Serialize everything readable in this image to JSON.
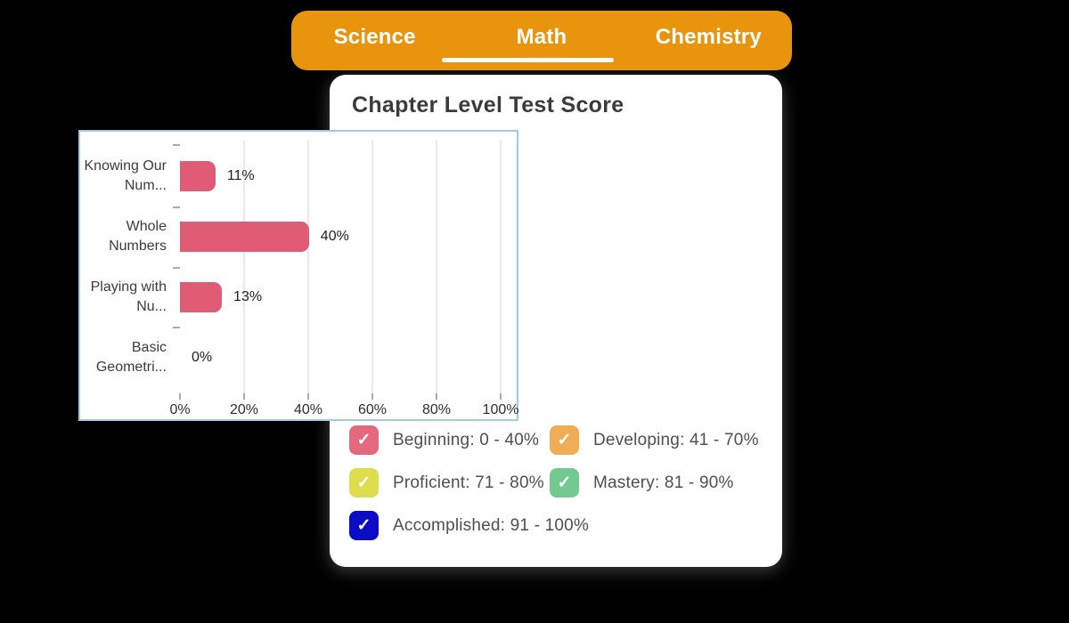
{
  "tab_bar": {
    "background_color": "#E8940D",
    "items": [
      {
        "label": "Science",
        "active": false
      },
      {
        "label": "Math",
        "active": true
      },
      {
        "label": "Chemistry",
        "active": false
      }
    ]
  },
  "card": {
    "title": "Chapter Level Test Score"
  },
  "chart_data": {
    "type": "bar",
    "orientation": "horizontal",
    "categories": [
      "Knowing Our Num...",
      "Whole Numbers",
      "Playing with Nu...",
      "Basic Geometri..."
    ],
    "values": [
      11,
      40,
      13,
      0
    ],
    "value_labels": [
      "11%",
      "40%",
      "13%",
      "0%"
    ],
    "x_ticks": [
      "0%",
      "20%",
      "40%",
      "60%",
      "80%",
      "100%"
    ],
    "xlim": [
      0,
      100
    ],
    "grid": true,
    "bar_color": "#E05C76",
    "legend_position": "below"
  },
  "legend": {
    "checkmark": "✓",
    "items": [
      {
        "label": "Beginning: 0 - 40%",
        "color": "#E5697E"
      },
      {
        "label": "Developing: 41 - 70%",
        "color": "#F0AD55"
      },
      {
        "label": "Proficient: 71 - 80%",
        "color": "#DEDD4D"
      },
      {
        "label": "Mastery: 81 - 90%",
        "color": "#73CA90"
      },
      {
        "label": "Accomplished: 91 - 100%",
        "color": "#0C0CC4"
      }
    ]
  }
}
